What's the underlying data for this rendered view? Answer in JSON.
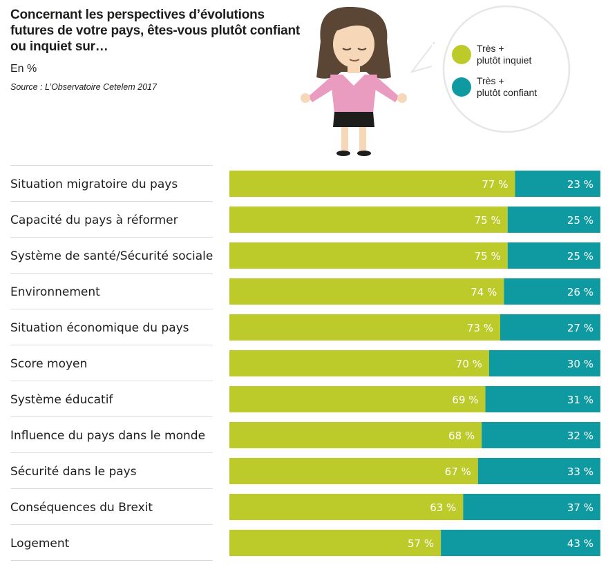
{
  "header": {
    "title": "Concernant les perspectives d’évolutions futures de votre pays, êtes-vous plutôt confiant ou inquiet sur…",
    "unit": "En %",
    "source": "Source : L’Observatoire Cetelem 2017"
  },
  "colors": {
    "inquiet": "#bccb2a",
    "confiant": "#0f9aa2",
    "divider": "#dcdcdc"
  },
  "chart_data": {
    "type": "bar",
    "stacked": true,
    "orientation": "horizontal",
    "xlim": [
      0,
      100
    ],
    "categories": [
      "Situation migratoire du pays",
      "Capacité du pays à réformer",
      "Système de santé/Sécurité sociale",
      "Environnement",
      "Situation économique du pays",
      "Score moyen",
      "Système éducatif",
      "Influence du pays dans le monde",
      "Sécurité dans le pays",
      "Conséquences du Brexit",
      "Logement"
    ],
    "series": [
      {
        "name": "Très + plutôt inquiet",
        "color": "#bccb2a",
        "values": [
          77,
          75,
          75,
          74,
          73,
          70,
          69,
          68,
          67,
          63,
          57
        ]
      },
      {
        "name": "Très + plutôt confiant",
        "color": "#0f9aa2",
        "values": [
          23,
          25,
          25,
          26,
          27,
          30,
          31,
          32,
          33,
          37,
          43
        ]
      }
    ],
    "value_suffix": " %",
    "legend": {
      "position": "top-right",
      "items": [
        {
          "line1": "Très +",
          "line2": "plutôt inquiet",
          "color": "#bccb2a"
        },
        {
          "line1": "Très +",
          "line2": "plutôt confiant",
          "color": "#0f9aa2"
        }
      ]
    }
  }
}
